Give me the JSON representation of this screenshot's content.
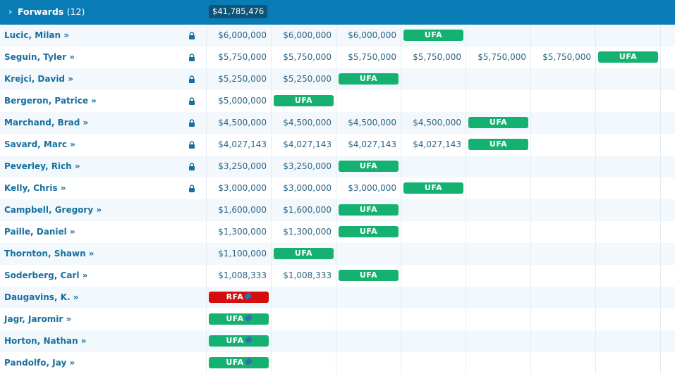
{
  "header": {
    "title": "Forwards",
    "count": "(12)",
    "total": "$41,785,476"
  },
  "colors": {
    "header_bg": "#0a7cb5",
    "ufa": "#15b171",
    "rfa": "#d50d0d"
  },
  "rows": [
    {
      "name": "Lucic, Milan »",
      "locked": true,
      "cells": [
        "$6,000,000",
        "$6,000,000",
        "$6,000,000",
        "UFA",
        "",
        "",
        ""
      ]
    },
    {
      "name": "Seguin, Tyler »",
      "locked": true,
      "cells": [
        "$5,750,000",
        "$5,750,000",
        "$5,750,000",
        "$5,750,000",
        "$5,750,000",
        "$5,750,000",
        "UFA"
      ]
    },
    {
      "name": "Krejci, David »",
      "locked": true,
      "cells": [
        "$5,250,000",
        "$5,250,000",
        "UFA",
        "",
        "",
        "",
        ""
      ]
    },
    {
      "name": "Bergeron, Patrice »",
      "locked": true,
      "cells": [
        "$5,000,000",
        "UFA",
        "",
        "",
        "",
        "",
        ""
      ]
    },
    {
      "name": "Marchand, Brad »",
      "locked": true,
      "cells": [
        "$4,500,000",
        "$4,500,000",
        "$4,500,000",
        "$4,500,000",
        "UFA",
        "",
        ""
      ]
    },
    {
      "name": "Savard, Marc »",
      "locked": true,
      "cells": [
        "$4,027,143",
        "$4,027,143",
        "$4,027,143",
        "$4,027,143",
        "UFA",
        "",
        ""
      ]
    },
    {
      "name": "Peverley, Rich »",
      "locked": true,
      "cells": [
        "$3,250,000",
        "$3,250,000",
        "UFA",
        "",
        "",
        "",
        ""
      ]
    },
    {
      "name": "Kelly, Chris »",
      "locked": true,
      "cells": [
        "$3,000,000",
        "$3,000,000",
        "$3,000,000",
        "UFA",
        "",
        "",
        ""
      ]
    },
    {
      "name": "Campbell, Gregory »",
      "locked": false,
      "cells": [
        "$1,600,000",
        "$1,600,000",
        "UFA",
        "",
        "",
        "",
        ""
      ]
    },
    {
      "name": "Paille, Daniel »",
      "locked": false,
      "cells": [
        "$1,300,000",
        "$1,300,000",
        "UFA",
        "",
        "",
        "",
        ""
      ]
    },
    {
      "name": "Thornton, Shawn »",
      "locked": false,
      "cells": [
        "$1,100,000",
        "UFA",
        "",
        "",
        "",
        "",
        ""
      ]
    },
    {
      "name": "Soderberg, Carl »",
      "locked": false,
      "cells": [
        "$1,008,333",
        "$1,008,333",
        "UFA",
        "",
        "",
        "",
        ""
      ]
    },
    {
      "name": "Daugavins, K. »",
      "locked": false,
      "cells": [
        "RFA*",
        "",
        "",
        "",
        "",
        "",
        ""
      ]
    },
    {
      "name": "Jagr, Jaromir »",
      "locked": false,
      "cells": [
        "UFA*",
        "",
        "",
        "",
        "",
        "",
        ""
      ]
    },
    {
      "name": "Horton, Nathan »",
      "locked": false,
      "cells": [
        "UFA*",
        "",
        "",
        "",
        "",
        "",
        ""
      ]
    },
    {
      "name": "Pandolfo, Jay »",
      "locked": false,
      "cells": [
        "UFA*",
        "",
        "",
        "",
        "",
        "",
        ""
      ]
    }
  ]
}
